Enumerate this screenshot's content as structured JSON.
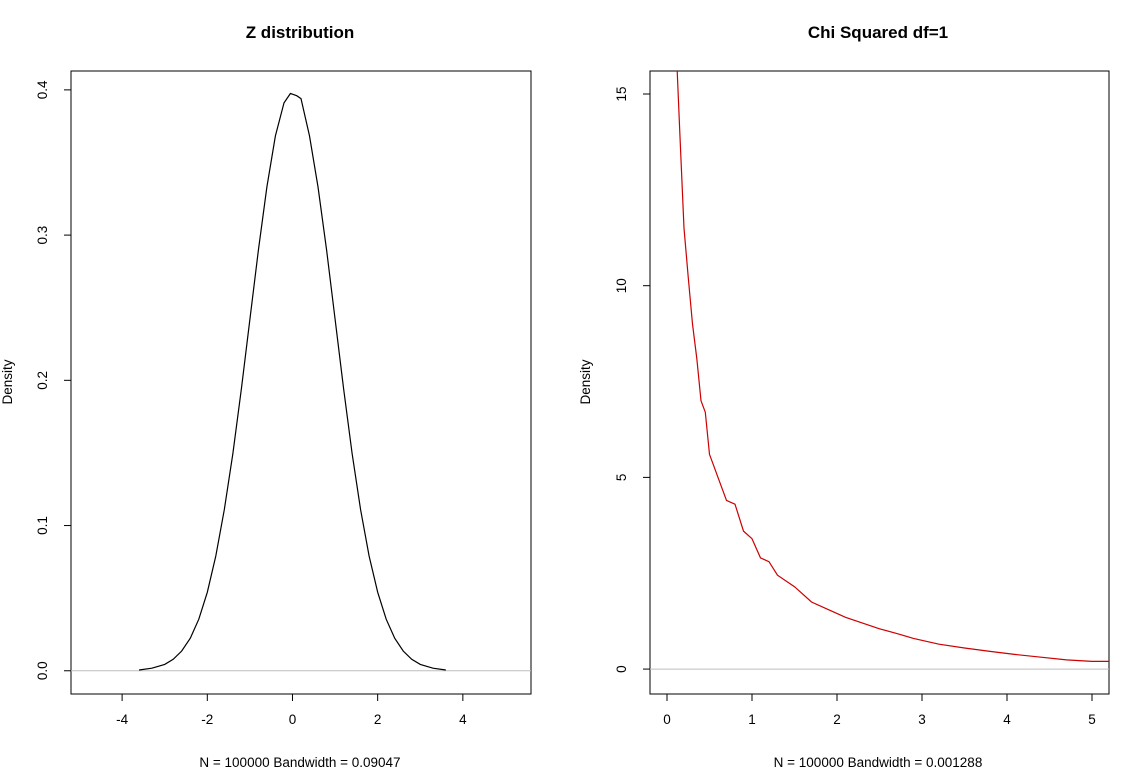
{
  "chart_data": [
    {
      "type": "line",
      "title": "Z distribution",
      "xlabel": "N = 100000   Bandwidth = 0.09047",
      "ylabel": "Density",
      "xlim": [
        -5.2,
        5.6
      ],
      "ylim": [
        -0.016,
        0.413
      ],
      "xticks": [
        -4,
        -2,
        0,
        2,
        4
      ],
      "xtick_labels": [
        "-4",
        "-2",
        "0",
        "2",
        "4"
      ],
      "yticks": [
        0.0,
        0.1,
        0.2,
        0.3,
        0.4
      ],
      "ytick_labels": [
        "0.0",
        "0.1",
        "0.2",
        "0.3",
        "0.4"
      ],
      "baseline": 0,
      "colors": {
        "line": "#000000",
        "baseline": "#bebebe",
        "frame": "#000000"
      },
      "grid": false,
      "series": [
        {
          "x": [
            -3.6,
            -3.3,
            -3.0,
            -2.8,
            -2.6,
            -2.4,
            -2.2,
            -2.0,
            -1.8,
            -1.6,
            -1.4,
            -1.2,
            -1.0,
            -0.8,
            -0.6,
            -0.4,
            -0.2,
            -0.05,
            0.0,
            0.1,
            0.2,
            0.4,
            0.6,
            0.8,
            1.0,
            1.2,
            1.4,
            1.6,
            1.8,
            2.0,
            2.2,
            2.4,
            2.6,
            2.8,
            3.0,
            3.3,
            3.6
          ],
          "y": [
            0.0005,
            0.0018,
            0.0044,
            0.0079,
            0.0136,
            0.0224,
            0.0355,
            0.054,
            0.079,
            0.1109,
            0.1497,
            0.1942,
            0.242,
            0.2897,
            0.3332,
            0.3683,
            0.391,
            0.3975,
            0.397,
            0.396,
            0.394,
            0.3683,
            0.3332,
            0.2897,
            0.242,
            0.1942,
            0.1497,
            0.1109,
            0.079,
            0.054,
            0.0355,
            0.0224,
            0.0136,
            0.0079,
            0.0044,
            0.0018,
            0.0005
          ]
        }
      ]
    },
    {
      "type": "line",
      "title": "Chi Squared df=1",
      "xlabel": "N = 100000   Bandwidth = 0.001288",
      "ylabel": "Density",
      "xlim": [
        -0.2,
        5.2
      ],
      "ylim": [
        -0.65,
        15.6
      ],
      "xticks": [
        0,
        1,
        2,
        3,
        4,
        5
      ],
      "xtick_labels": [
        "0",
        "1",
        "2",
        "3",
        "4",
        "5"
      ],
      "yticks": [
        0,
        5,
        10,
        15
      ],
      "ytick_labels": [
        "0",
        "5",
        "10",
        "15"
      ],
      "baseline": 0,
      "colors": {
        "line": "#cc0000",
        "baseline": "#bebebe",
        "frame": "#000000"
      },
      "grid": false,
      "series": [
        {
          "x": [
            0.12,
            0.15,
            0.2,
            0.25,
            0.3,
            0.35,
            0.4,
            0.45,
            0.5,
            0.55,
            0.6,
            0.7,
            0.8,
            0.9,
            1.0,
            1.1,
            1.2,
            1.3,
            1.5,
            1.7,
            1.9,
            2.1,
            2.3,
            2.5,
            2.7,
            2.9,
            3.2,
            3.5,
            3.8,
            4.1,
            4.4,
            4.7,
            5.0,
            5.2
          ],
          "y": [
            15.6,
            14.0,
            11.5,
            10.2,
            9.0,
            8.1,
            7.0,
            6.7,
            5.6,
            5.3,
            5.0,
            4.4,
            4.3,
            3.6,
            3.4,
            2.9,
            2.8,
            2.45,
            2.15,
            1.75,
            1.55,
            1.35,
            1.2,
            1.05,
            0.93,
            0.8,
            0.65,
            0.55,
            0.46,
            0.38,
            0.31,
            0.24,
            0.2,
            0.2
          ]
        }
      ]
    }
  ]
}
